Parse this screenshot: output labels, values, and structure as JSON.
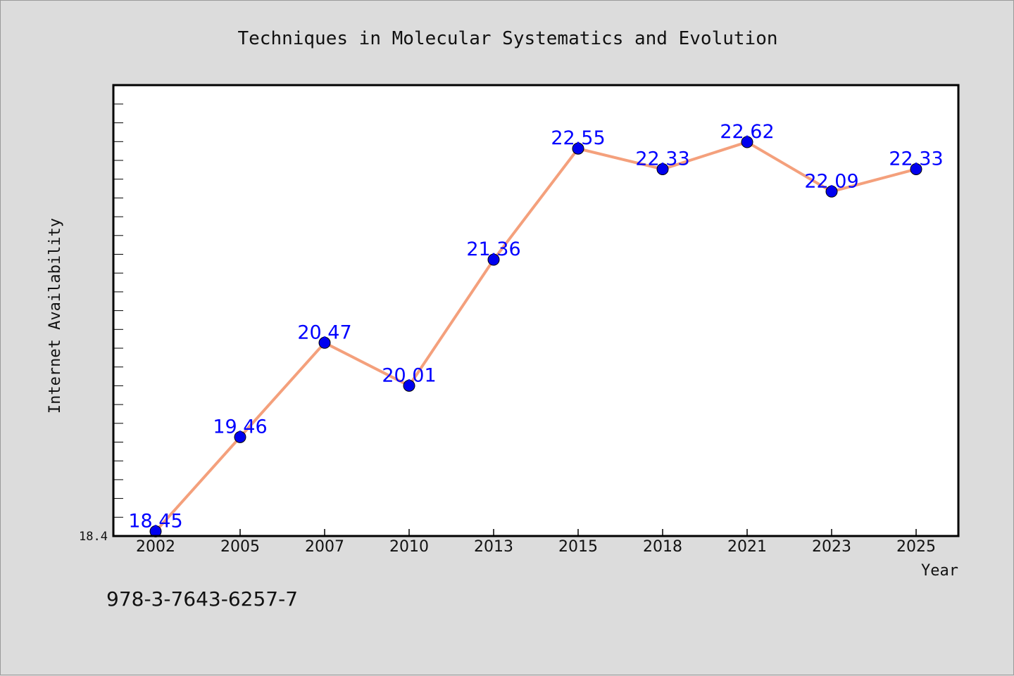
{
  "chart_data": {
    "type": "line",
    "title": "Techniques in Molecular Systematics and Evolution",
    "xlabel": "Year",
    "ylabel": "Internet Availability",
    "categories": [
      "2002",
      "2005",
      "2007",
      "2010",
      "2013",
      "2015",
      "2018",
      "2021",
      "2023",
      "2025"
    ],
    "series": [
      {
        "values": [
          18.45,
          19.46,
          20.47,
          20.01,
          21.36,
          22.55,
          22.33,
          22.62,
          22.09,
          22.33
        ],
        "data_labels": [
          "18.45",
          "19.46",
          "20.47",
          "20.01",
          "21.36",
          "22.55",
          "22.33",
          "22.62",
          "22.09",
          "22.33"
        ],
        "line_color": "#f4a07c",
        "marker_color": "#0000ee"
      }
    ],
    "ylim": [
      18.4,
      23.23
    ],
    "y_tick_labels": [
      "18.4"
    ],
    "grid": false,
    "legend": "none",
    "plot_background": "#ffffff",
    "page_background": "#dcdcdc",
    "label_color": "#0000ff"
  },
  "footer": {
    "isbn": "978-3-7643-6257-7"
  }
}
